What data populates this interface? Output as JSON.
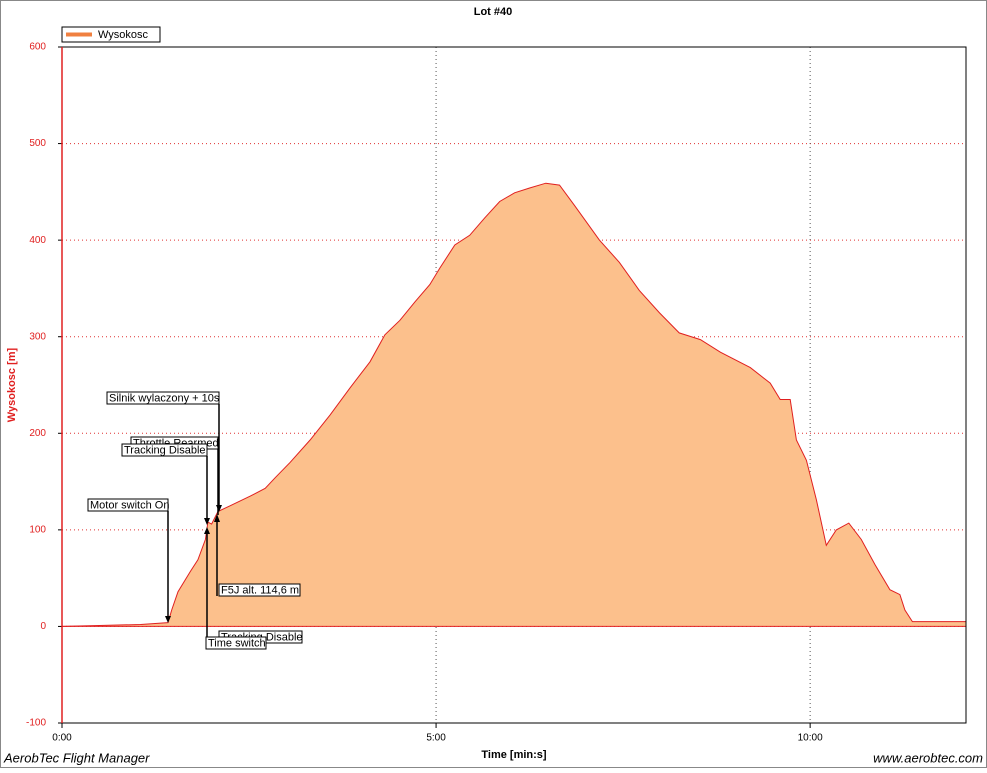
{
  "chart_data": {
    "type": "area",
    "title": "Lot #40",
    "legend": "Wysokosc",
    "y_label": "Wysokosc [m]",
    "x_label": "Time [min:s]",
    "footer_left": "AerobTec Flight Manager",
    "footer_right": "www.aerobtec.com",
    "color": "#e02020",
    "fill": "#fcc08c",
    "grid": true,
    "xlim": [
      0,
      725
    ],
    "ylim": [
      -100,
      600
    ],
    "xticks": [
      {
        "value": 0,
        "label": "0:00"
      },
      {
        "value": 300,
        "label": "5:00"
      },
      {
        "value": 600,
        "label": "10:00"
      }
    ],
    "yticks": [
      -100,
      0,
      100,
      200,
      300,
      400,
      500,
      600
    ],
    "x": [
      0,
      30,
      63,
      85,
      88,
      93,
      103,
      109,
      115,
      117,
      120,
      125,
      135,
      151,
      163,
      171,
      183,
      199,
      215,
      231,
      247,
      259,
      271,
      283,
      295,
      303,
      315,
      327,
      339,
      351,
      363,
      375,
      388,
      399,
      411,
      431,
      447,
      463,
      479,
      495,
      512,
      528,
      552,
      568,
      576,
      584,
      589,
      597,
      605,
      613,
      621,
      631,
      641,
      652,
      664,
      672,
      676,
      682,
      688,
      725
    ],
    "values": [
      0,
      1,
      2,
      4,
      17,
      36,
      57,
      69,
      90,
      108,
      106,
      119,
      125,
      135,
      143,
      154,
      170,
      193,
      219,
      247,
      274,
      302,
      317,
      336,
      354,
      371,
      395,
      405,
      423,
      440,
      449,
      454,
      459,
      457,
      436,
      400,
      377,
      348,
      325,
      304,
      297,
      284,
      268,
      252,
      235,
      235,
      193,
      172,
      131,
      84,
      100,
      107,
      90,
      64,
      38,
      33,
      17,
      5,
      5,
      5
    ],
    "annotations": [
      "Motor switch On",
      "Throttle Rearmed",
      "Tracking Disable",
      "Silnik wylaczony + 10s",
      "F5J alt. 114,6 m",
      "Tracking Disable",
      "Time switch"
    ]
  }
}
